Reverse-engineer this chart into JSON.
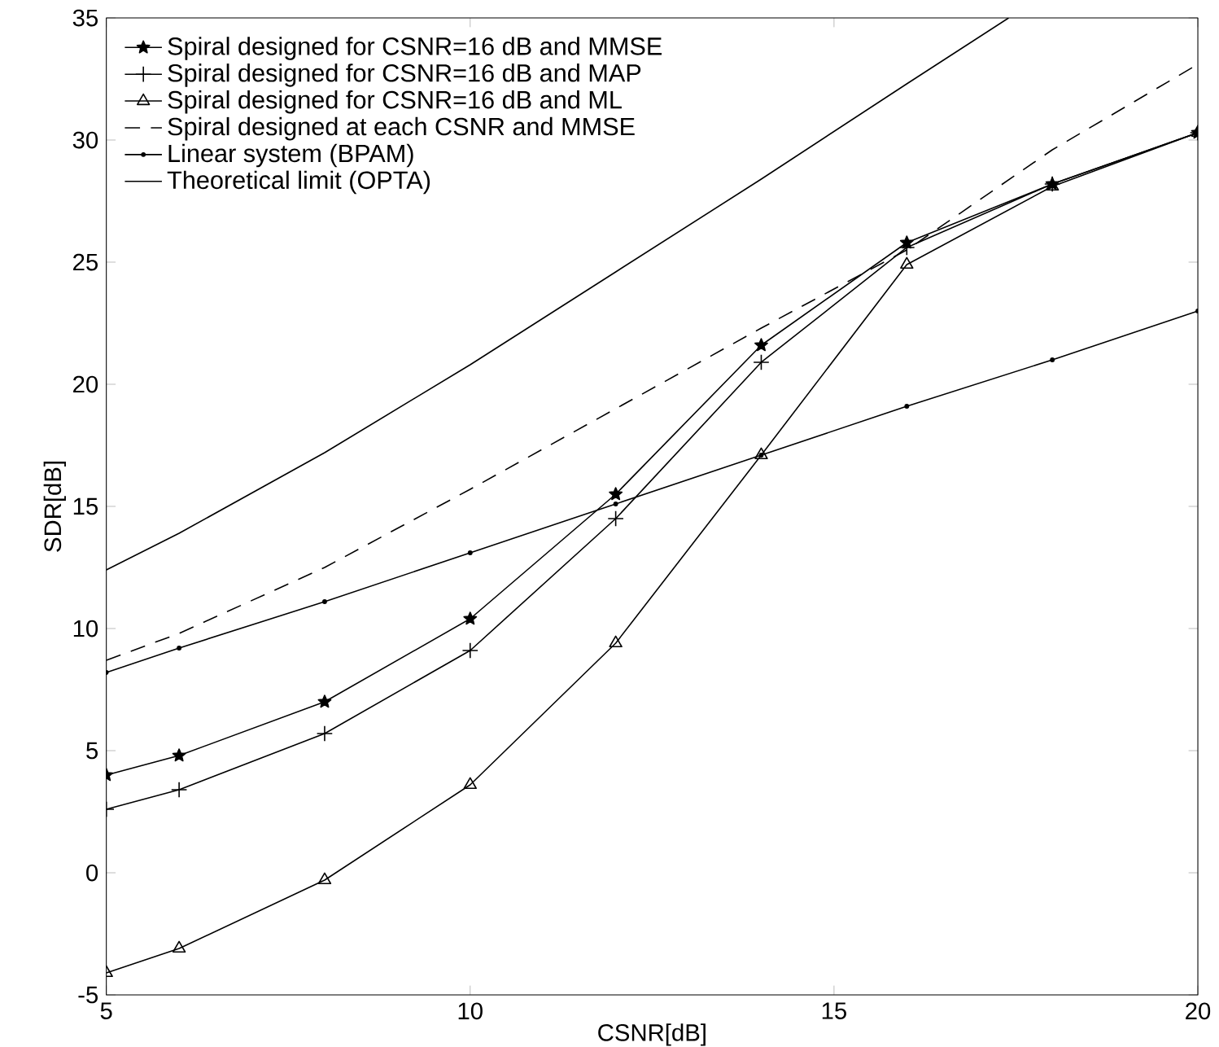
{
  "chart_data": {
    "type": "line",
    "xlabel": "CSNR[dB]",
    "ylabel": "SDR[dB]",
    "xlim": [
      5,
      20
    ],
    "ylim": [
      -5,
      35
    ],
    "xticks": [
      5,
      10,
      15,
      20
    ],
    "yticks": [
      -5,
      0,
      5,
      10,
      15,
      20,
      25,
      30,
      35
    ],
    "grid": false,
    "legend": "top left",
    "line_style": "solid",
    "series": [
      {
        "name": "Spiral designed for CSNR=16 dB and MMSE",
        "color": "#000000",
        "marker": "star",
        "x": [
          5,
          6,
          8,
          10,
          12,
          14,
          16,
          18,
          20
        ],
        "values": [
          4.0,
          4.8,
          7.0,
          10.4,
          15.5,
          21.6,
          25.8,
          28.2,
          30.3
        ]
      },
      {
        "name": "Spiral designed for CSNR=16 dB and MAP",
        "color": "#000000",
        "marker": "cross",
        "x": [
          5,
          6,
          8,
          10,
          12,
          14,
          16,
          18,
          20
        ],
        "values": [
          2.6,
          3.4,
          5.7,
          9.1,
          14.5,
          20.9,
          25.6,
          28.2,
          30.3
        ]
      },
      {
        "name": "Spiral designed for CSNR=16 dB and ML",
        "color": "#000000",
        "marker": "triangle",
        "x": [
          5,
          6,
          8,
          10,
          12,
          14,
          16,
          18,
          20
        ],
        "values": [
          -4.1,
          -3.1,
          -0.3,
          3.6,
          9.4,
          17.1,
          24.9,
          28.1,
          30.3
        ]
      },
      {
        "name": "Spiral designed at each CSNR and MMSE",
        "color": "#000000",
        "marker": "none",
        "line_style": "dashed",
        "x": [
          5,
          6,
          8,
          10,
          12,
          14,
          16,
          18,
          20
        ],
        "values": [
          8.7,
          9.8,
          12.5,
          15.7,
          19.0,
          22.3,
          25.5,
          29.6,
          33.1
        ]
      },
      {
        "name": "Linear system (BPAM)",
        "color": "#000000",
        "marker": "circle",
        "x": [
          5,
          6,
          8,
          10,
          12,
          14,
          16,
          18,
          20
        ],
        "values": [
          8.2,
          9.2,
          11.1,
          13.1,
          15.1,
          17.1,
          19.1,
          21.0,
          23.0
        ]
      },
      {
        "name": "Theoretical limit (OPTA)",
        "color": "#000000",
        "marker": "none",
        "x": [
          5,
          6,
          8,
          10,
          12,
          14,
          16,
          17.4
        ],
        "values": [
          12.4,
          13.9,
          17.2,
          20.8,
          24.6,
          28.4,
          32.3,
          35.0
        ]
      }
    ]
  }
}
